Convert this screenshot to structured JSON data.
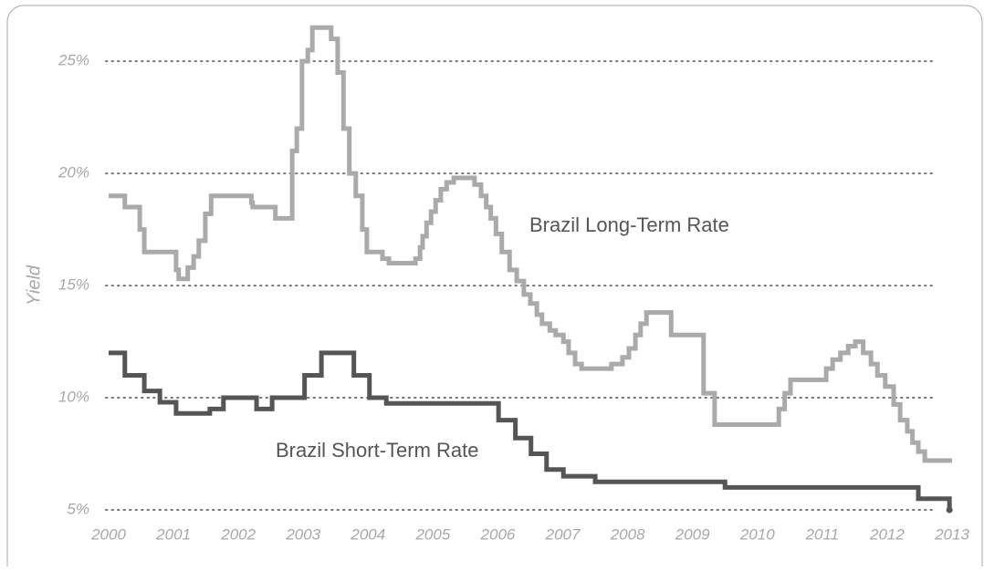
{
  "chart_data": {
    "type": "line",
    "step": true,
    "y_label": "Yield",
    "xlim": [
      2000,
      2013
    ],
    "xticks": [
      2000,
      2001,
      2002,
      2003,
      2004,
      2005,
      2006,
      2007,
      2008,
      2009,
      2010,
      2011,
      2012,
      2013
    ],
    "ylim": [
      5,
      27
    ],
    "yticks": [
      {
        "value": 5,
        "label": "5%"
      },
      {
        "value": 10,
        "label": "10%"
      },
      {
        "value": 15,
        "label": "15%"
      },
      {
        "value": 20,
        "label": "20%"
      },
      {
        "value": 25,
        "label": "25%"
      }
    ],
    "grid": true,
    "series": [
      {
        "name": "Brazil Long-Term Rate",
        "color": "#aaaaaa",
        "x": [
          2000,
          2000.25,
          2000.48,
          2000.55,
          2001.04,
          2001.08,
          2001.22,
          2001.31,
          2001.39,
          2001.49,
          2001.58,
          2002.2,
          2002.22,
          2002.57,
          2002.83,
          2002.9,
          2002.98,
          2003.07,
          2003.14,
          2003.43,
          2003.53,
          2003.62,
          2003.71,
          2003.81,
          2003.91,
          2003.98,
          2004.22,
          2004.32,
          2004.73,
          2004.8,
          2004.84,
          2004.9,
          2004.97,
          2005.04,
          2005.12,
          2005.21,
          2005.32,
          2005.64,
          2005.74,
          2005.82,
          2005.89,
          2005.97,
          2006.06,
          2006.18,
          2006.29,
          2006.4,
          2006.5,
          2006.6,
          2006.68,
          2006.8,
          2006.89,
          2007.01,
          2007.09,
          2007.19,
          2007.29,
          2007.75,
          2007.92,
          2008.02,
          2008.12,
          2008.2,
          2008.29,
          2008.67,
          2009.17,
          2009.34,
          2009.52,
          2010.33,
          2010.42,
          2010.51,
          2011.06,
          2011.16,
          2011.28,
          2011.4,
          2011.51,
          2011.63,
          2011.75,
          2011.85,
          2011.97,
          2012.1,
          2012.2,
          2012.31,
          2012.39,
          2012.48,
          2012.58,
          2013
        ],
        "values": [
          19.0,
          18.5,
          17.5,
          16.5,
          15.7,
          15.3,
          15.8,
          16.3,
          17.0,
          18.2,
          19.0,
          18.7,
          18.5,
          18.0,
          21.0,
          22.0,
          25.0,
          25.5,
          26.5,
          26.0,
          24.5,
          22.0,
          20.0,
          19.0,
          17.5,
          16.5,
          16.2,
          16.0,
          16.2,
          16.7,
          17.2,
          17.8,
          18.3,
          18.8,
          19.3,
          19.6,
          19.8,
          19.5,
          19.0,
          18.5,
          18.0,
          17.3,
          16.5,
          15.7,
          15.2,
          14.6,
          14.2,
          13.7,
          13.3,
          13.0,
          12.8,
          12.5,
          12.0,
          11.5,
          11.3,
          11.5,
          11.8,
          12.2,
          12.8,
          13.3,
          13.8,
          12.8,
          10.2,
          8.8,
          8.8,
          9.5,
          10.2,
          10.8,
          11.3,
          11.7,
          12.0,
          12.3,
          12.5,
          12.0,
          11.5,
          11.0,
          10.5,
          9.7,
          9.0,
          8.5,
          8.0,
          7.6,
          7.2,
          7.2
        ]
      },
      {
        "name": "Brazil Short-Term Rate",
        "color": "#555555",
        "x": [
          2000,
          2000.25,
          2000.55,
          2000.79,
          2001.04,
          2001.56,
          2001.77,
          2002.28,
          2002.52,
          2003.02,
          2003.28,
          2003.78,
          2004.02,
          2004.28,
          2006.01,
          2006.27,
          2006.51,
          2006.75,
          2007.01,
          2007.5,
          2009.5,
          2012.48,
          2012.96
        ],
        "values": [
          12.0,
          11.0,
          10.3,
          9.8,
          9.3,
          9.5,
          10.0,
          9.5,
          10.0,
          11.0,
          12.0,
          11.0,
          10.0,
          9.75,
          9.0,
          8.2,
          7.5,
          6.8,
          6.5,
          6.25,
          6.0,
          5.5,
          5.0
        ]
      }
    ]
  }
}
